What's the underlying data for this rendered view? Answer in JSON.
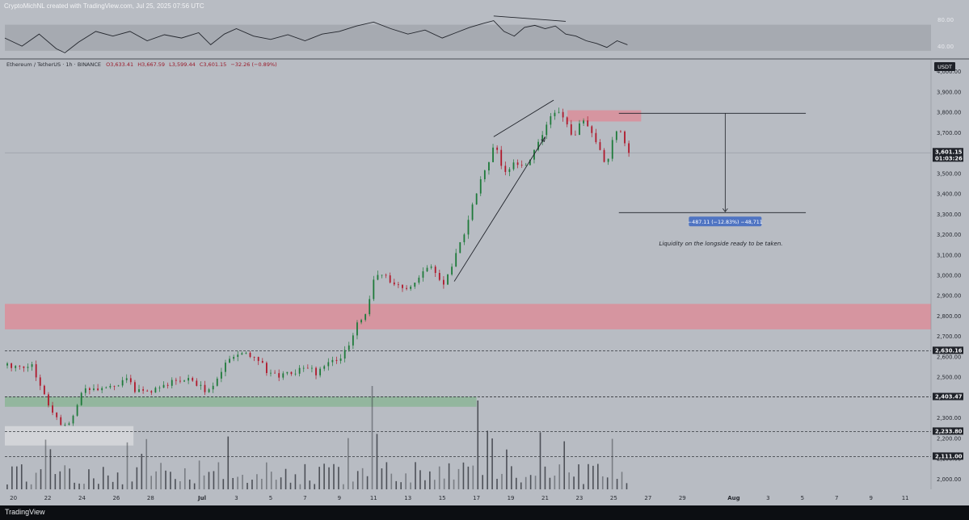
{
  "credit": "CryptoMichNL created with TradingView.com, Jul 25, 2025 07:56 UTC",
  "footer": {
    "logo": "TradingView"
  },
  "colors": {
    "background": "#b8bcc3",
    "panel_dark": "#0c0e12",
    "bull": "#1e7a3a",
    "bear": "#b0182b",
    "resistance_zone": "#d9909c",
    "support_zone": "#8fb59a",
    "price_label": "#1f2229",
    "measure_box": "#4f74c2",
    "volume": "#3a3d44"
  },
  "chart_data": {
    "type": "candlestick",
    "symbol_line": "Ethereum / TetherUS · 1h · BINANCE",
    "ohlc": {
      "o": "O3,633.41",
      "h": "H3,667.59",
      "l": "L3,599.44",
      "c": "C3,601.15",
      "chg": "−32.26 (−0.89%)"
    },
    "currency": "USDT",
    "ylim": [
      1950,
      4050
    ],
    "y_ticks": [
      2000,
      2100,
      2200,
      2300,
      2400,
      2500,
      2600,
      2700,
      2800,
      2900,
      3000,
      3100,
      3200,
      3300,
      3400,
      3500,
      3600,
      3700,
      3800,
      3900,
      4000
    ],
    "y_tick_labels": [
      "2,000.00",
      "2,100.00",
      "2,200.00",
      "2,300.00",
      "2,400.00",
      "2,500.00",
      "2,600.00",
      "2,700.00",
      "2,800.00",
      "2,900.00",
      "3,000.00",
      "3,100.00",
      "3,200.00",
      "3,300.00",
      "3,400.00",
      "3,500.00",
      "3,600.00",
      "3,700.00",
      "3,800.00",
      "3,900.00",
      "4,000.00"
    ],
    "x_ticks": [
      {
        "label": "20",
        "day": 20
      },
      {
        "label": "22",
        "day": 22
      },
      {
        "label": "24",
        "day": 24
      },
      {
        "label": "26",
        "day": 26
      },
      {
        "label": "28",
        "day": 28
      },
      {
        "label": "Jul",
        "day": 31
      },
      {
        "label": "3",
        "day": 33
      },
      {
        "label": "5",
        "day": 35
      },
      {
        "label": "7",
        "day": 37
      },
      {
        "label": "9",
        "day": 39
      },
      {
        "label": "11",
        "day": 41
      },
      {
        "label": "13",
        "day": 43
      },
      {
        "label": "15",
        "day": 45
      },
      {
        "label": "17",
        "day": 47
      },
      {
        "label": "19",
        "day": 49
      },
      {
        "label": "21",
        "day": 51
      },
      {
        "label": "23",
        "day": 53
      },
      {
        "label": "25",
        "day": 55
      },
      {
        "label": "27",
        "day": 57
      },
      {
        "label": "29",
        "day": 59
      },
      {
        "label": "Aug",
        "day": 62
      },
      {
        "label": "3",
        "day": 64
      },
      {
        "label": "5",
        "day": 66
      },
      {
        "label": "7",
        "day": 68
      },
      {
        "label": "9",
        "day": 70
      },
      {
        "label": "11",
        "day": 72
      }
    ],
    "xlim_days": [
      19.5,
      73.5
    ],
    "price_path": [
      [
        19.5,
        2560
      ],
      [
        20.3,
        2540
      ],
      [
        21.0,
        2570
      ],
      [
        21.5,
        2460
      ],
      [
        22.0,
        2360
      ],
      [
        22.5,
        2300
      ],
      [
        23.0,
        2250
      ],
      [
        23.6,
        2350
      ],
      [
        24.0,
        2430
      ],
      [
        25.0,
        2450
      ],
      [
        26.0,
        2460
      ],
      [
        26.5,
        2500
      ],
      [
        27.0,
        2440
      ],
      [
        27.7,
        2420
      ],
      [
        28.3,
        2450
      ],
      [
        29.0,
        2470
      ],
      [
        30.0,
        2490
      ],
      [
        30.8,
        2460
      ],
      [
        31.3,
        2420
      ],
      [
        32.0,
        2530
      ],
      [
        32.7,
        2610
      ],
      [
        33.5,
        2620
      ],
      [
        34.2,
        2590
      ],
      [
        34.8,
        2520
      ],
      [
        35.5,
        2510
      ],
      [
        36.4,
        2520
      ],
      [
        37.0,
        2550
      ],
      [
        37.6,
        2520
      ],
      [
        38.3,
        2560
      ],
      [
        39.0,
        2600
      ],
      [
        39.6,
        2660
      ],
      [
        40.0,
        2770
      ],
      [
        40.5,
        2800
      ],
      [
        41.0,
        2980
      ],
      [
        41.4,
        3010
      ],
      [
        42.0,
        2970
      ],
      [
        42.7,
        2930
      ],
      [
        43.4,
        2960
      ],
      [
        44.0,
        3040
      ],
      [
        44.5,
        3030
      ],
      [
        45.0,
        2960
      ],
      [
        45.5,
        3050
      ],
      [
        46.0,
        3150
      ],
      [
        46.6,
        3300
      ],
      [
        47.0,
        3420
      ],
      [
        47.5,
        3520
      ],
      [
        48.0,
        3650
      ],
      [
        48.6,
        3500
      ],
      [
        49.2,
        3560
      ],
      [
        49.8,
        3520
      ],
      [
        50.3,
        3620
      ],
      [
        50.8,
        3700
      ],
      [
        51.3,
        3780
      ],
      [
        51.8,
        3790
      ],
      [
        52.2,
        3740
      ],
      [
        52.6,
        3680
      ],
      [
        53.1,
        3770
      ],
      [
        53.6,
        3700
      ],
      [
        54.0,
        3650
      ],
      [
        54.5,
        3540
      ],
      [
        55.0,
        3700
      ],
      [
        55.3,
        3720
      ],
      [
        55.8,
        3601
      ]
    ],
    "volume_note": "hourly volume histogram along the bottom",
    "volume_max": 100,
    "last_price": "3,601.15",
    "countdown": "01:03:26",
    "price_levels": [
      {
        "label": "2,630.16",
        "value": 2630.16
      },
      {
        "label": "2,403.47",
        "value": 2403.47
      },
      {
        "label": "2,233.80",
        "value": 2233.8
      },
      {
        "label": "2,111.00",
        "value": 2111.0
      }
    ],
    "zones": [
      {
        "kind": "resistance",
        "y1": 2735,
        "y2": 2860,
        "from_day": 19.5,
        "to_day": 73.5
      },
      {
        "kind": "resistance",
        "y1": 3755,
        "y2": 3810,
        "from_day": 52.3,
        "to_day": 56.6
      },
      {
        "kind": "support",
        "y1": 2355,
        "y2": 2405,
        "from_day": 19.5,
        "to_day": 47.0
      },
      {
        "kind": "highlight",
        "y1": 2165,
        "y2": 2260,
        "from_day": 19.5,
        "to_day": 27.0
      }
    ],
    "measure": {
      "top": 3795,
      "bottom": 3308,
      "from_day": 55.3,
      "to_day": 66.2,
      "arrow_day": 61.5,
      "label": "−487.11 (−12.83%) −48,711"
    },
    "annotation": "Liquidity on the longside ready to be taken.",
    "trend_lines": [
      {
        "from": [
          48.0,
          3680
        ],
        "to": [
          51.5,
          3860
        ]
      },
      {
        "from": [
          45.7,
          2970
        ],
        "to": [
          51.0,
          3680
        ],
        "arrow": true
      }
    ],
    "indicator": {
      "name": "RSI",
      "ylim": [
        22,
        92
      ],
      "y_ticks": [
        80,
        40
      ],
      "y_tick_labels": [
        "80.00",
        "40.00"
      ],
      "band": [
        33,
        72
      ],
      "path": [
        [
          19.5,
          52
        ],
        [
          20.5,
          40
        ],
        [
          21.5,
          58
        ],
        [
          22.5,
          36
        ],
        [
          23.0,
          30
        ],
        [
          23.8,
          46
        ],
        [
          24.8,
          62
        ],
        [
          25.8,
          55
        ],
        [
          26.8,
          62
        ],
        [
          27.8,
          48
        ],
        [
          28.8,
          57
        ],
        [
          29.8,
          52
        ],
        [
          30.8,
          60
        ],
        [
          31.5,
          42
        ],
        [
          32.3,
          58
        ],
        [
          33.0,
          66
        ],
        [
          34.0,
          55
        ],
        [
          35.0,
          50
        ],
        [
          36.0,
          57
        ],
        [
          37.0,
          48
        ],
        [
          38.0,
          58
        ],
        [
          39.0,
          62
        ],
        [
          40.0,
          70
        ],
        [
          41.0,
          76
        ],
        [
          42.0,
          66
        ],
        [
          43.0,
          58
        ],
        [
          44.0,
          64
        ],
        [
          45.0,
          52
        ],
        [
          45.8,
          60
        ],
        [
          46.6,
          68
        ],
        [
          47.4,
          74
        ],
        [
          48.0,
          78
        ],
        [
          48.6,
          62
        ],
        [
          49.2,
          55
        ],
        [
          49.8,
          68
        ],
        [
          50.4,
          71
        ],
        [
          51.0,
          66
        ],
        [
          51.6,
          70
        ],
        [
          52.2,
          58
        ],
        [
          52.8,
          55
        ],
        [
          53.4,
          48
        ],
        [
          54.0,
          44
        ],
        [
          54.6,
          38
        ],
        [
          55.2,
          48
        ],
        [
          55.8,
          42
        ]
      ],
      "divergence": {
        "from": [
          48.0,
          85
        ],
        "to": [
          52.2,
          77
        ]
      }
    }
  }
}
